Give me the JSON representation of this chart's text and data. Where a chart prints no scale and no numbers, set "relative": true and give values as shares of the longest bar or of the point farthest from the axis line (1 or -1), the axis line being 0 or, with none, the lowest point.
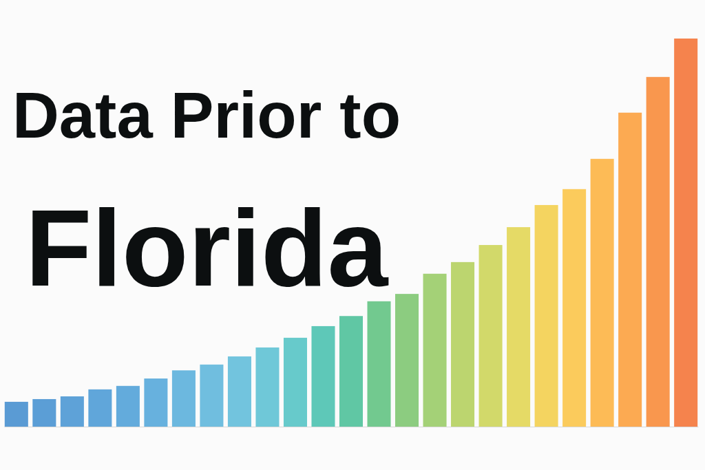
{
  "chart_data": {
    "type": "bar",
    "title": "Data Prior to Florida",
    "relative": true,
    "categories": [
      null,
      null,
      null,
      null,
      null,
      null,
      null,
      null,
      null,
      null,
      null,
      null,
      null,
      null,
      null,
      null,
      null,
      null,
      null,
      null,
      null,
      null,
      null,
      null,
      null
    ],
    "values": [
      0.064,
      0.071,
      0.078,
      0.096,
      0.105,
      0.124,
      0.145,
      0.16,
      0.181,
      0.204,
      0.229,
      0.259,
      0.285,
      0.323,
      0.342,
      0.394,
      0.424,
      0.468,
      0.514,
      0.571,
      0.612,
      0.69,
      0.809,
      0.901,
      1
    ],
    "colors": [
      "#5a9bd4",
      "#5b9ed6",
      "#5ea2d8",
      "#60a6da",
      "#63abdc",
      "#67b1de",
      "#6cb8df",
      "#70bedf",
      "#72c4de",
      "#6fc8d8",
      "#67cacb",
      "#5ec8b8",
      "#60c7a4",
      "#72c98f",
      "#8ccc80",
      "#a4d177",
      "#bcd56f",
      "#d2d96a",
      "#e5da66",
      "#f4d460",
      "#fbcb5c",
      "#fdbb56",
      "#fcaa52",
      "#f9974e",
      "#f5834d"
    ]
  }
}
